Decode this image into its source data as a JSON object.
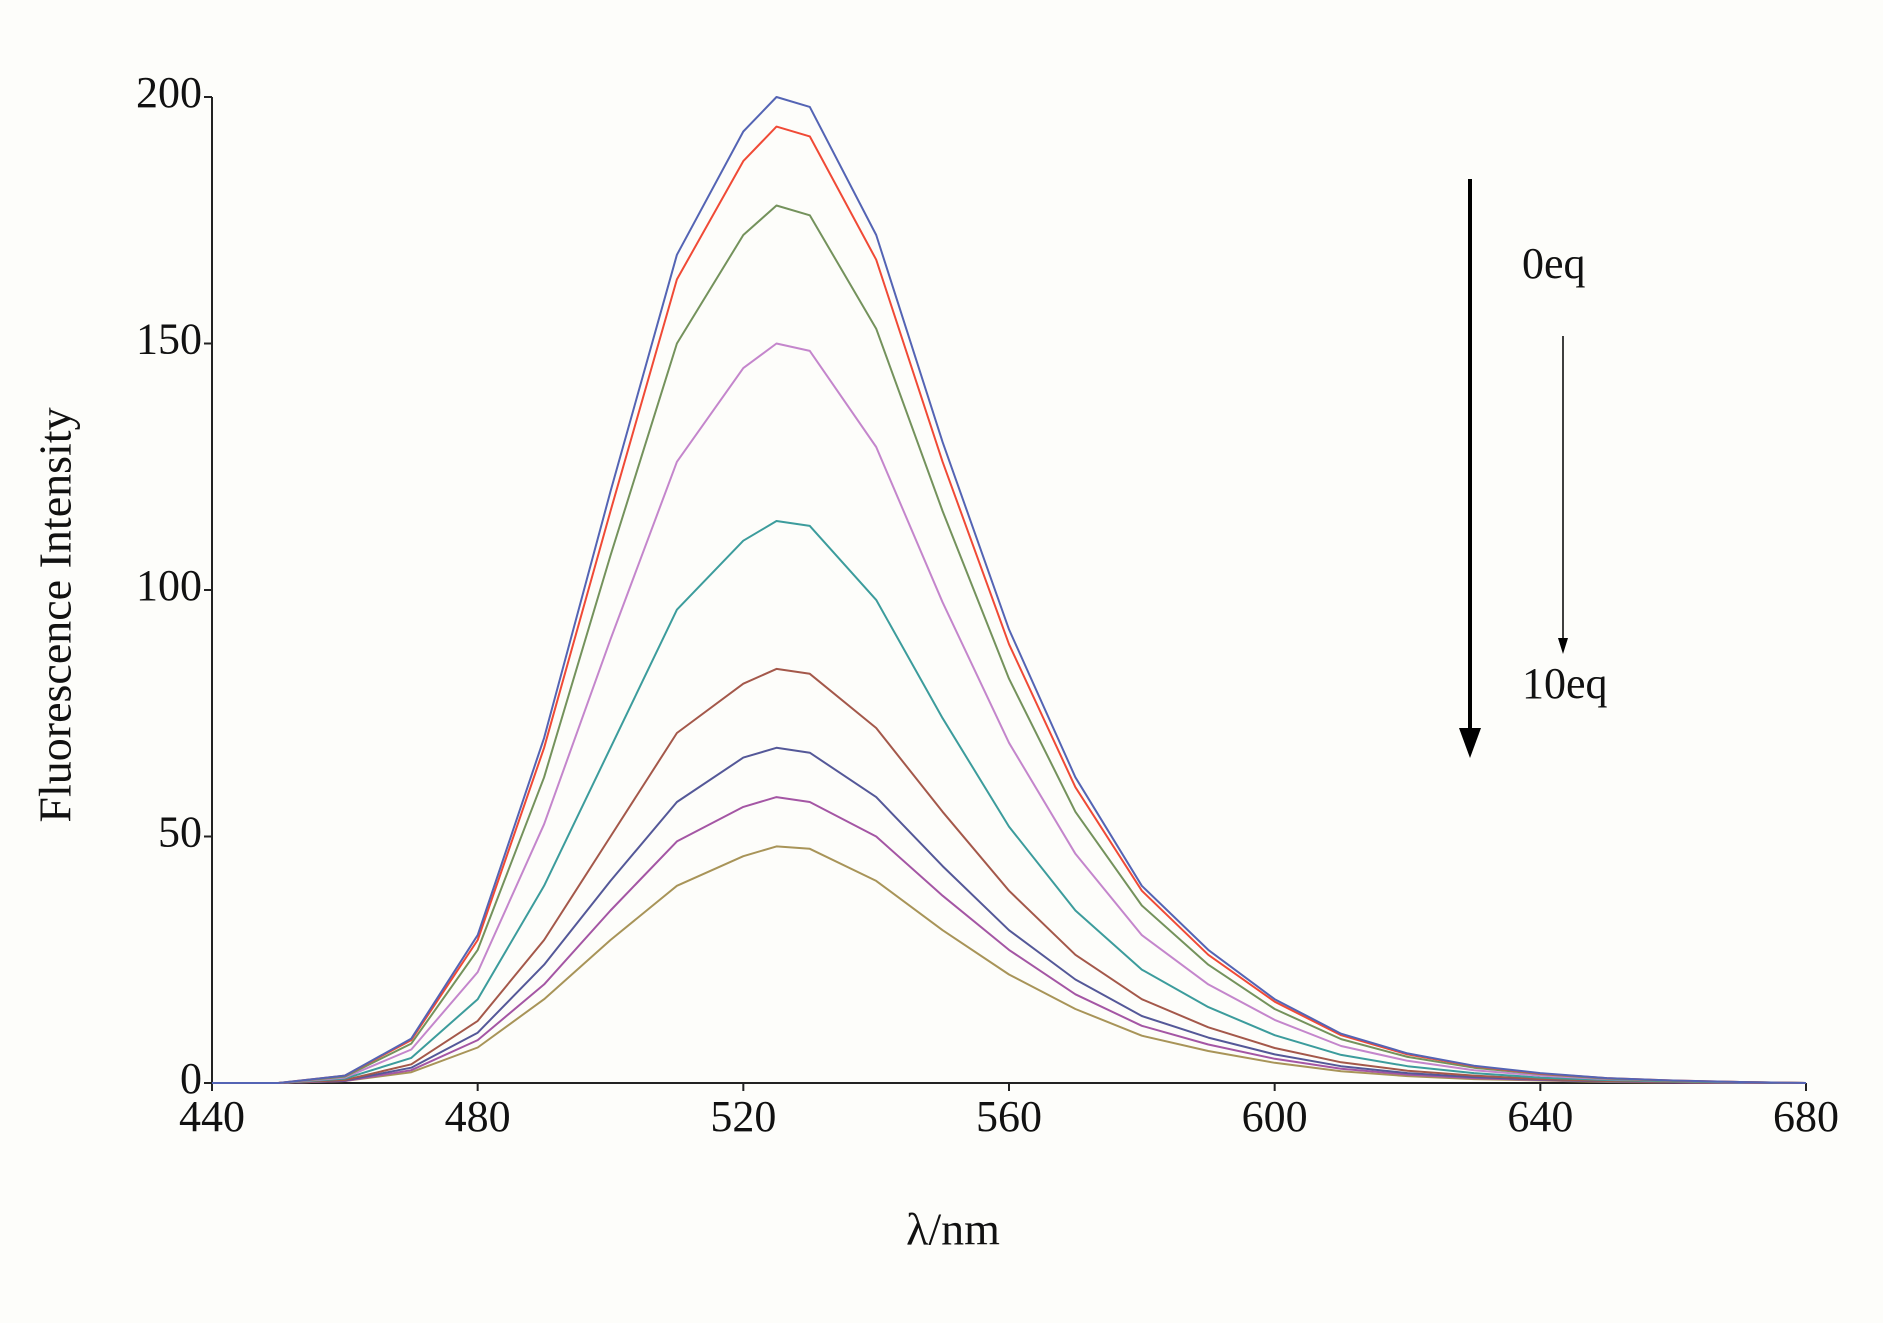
{
  "chart_data": {
    "type": "line",
    "xlabel": "λ/nm",
    "ylabel": "Fluorescence Intensity",
    "annotations": [
      "0eq",
      "10eq"
    ],
    "grid": false,
    "xlim": [
      440,
      680
    ],
    "ylim": [
      0,
      200
    ],
    "xticks": [
      440,
      480,
      520,
      560,
      600,
      640,
      680
    ],
    "yticks": [
      0,
      50,
      100,
      150,
      200
    ],
    "x": [
      440,
      450,
      460,
      470,
      480,
      490,
      500,
      510,
      520,
      525,
      530,
      540,
      550,
      560,
      570,
      580,
      590,
      600,
      610,
      620,
      630,
      640,
      650,
      660,
      670,
      680
    ],
    "series": [
      {
        "color": "#5464b4",
        "values": [
          0,
          0,
          1.5,
          9,
          30,
          70,
          120,
          168,
          193,
          200,
          198,
          172,
          130,
          92,
          62,
          40,
          27,
          17,
          10,
          6,
          3.5,
          2,
          1,
          0.5,
          0.2,
          0
        ]
      },
      {
        "color": "#f04a36",
        "values": [
          0,
          0,
          1.5,
          8.7,
          29,
          68,
          116,
          163,
          187,
          194,
          192,
          167,
          126,
          89,
          60,
          39,
          26,
          16.5,
          9.7,
          5.8,
          3.4,
          1.9,
          1,
          0.5,
          0.2,
          0
        ]
      },
      {
        "color": "#74925c",
        "values": [
          0,
          0,
          1.3,
          8,
          27,
          62,
          107,
          150,
          172,
          178,
          176,
          153,
          116,
          82,
          55,
          36,
          24,
          15,
          8.9,
          5.3,
          3.1,
          1.8,
          0.9,
          0.4,
          0.2,
          0
        ]
      },
      {
        "color": "#c486cc",
        "values": [
          0,
          0,
          1.1,
          6.8,
          22.5,
          52.5,
          90,
          126,
          145,
          150,
          148.5,
          129,
          97.5,
          69,
          46.5,
          30,
          20,
          12.8,
          7.5,
          4.5,
          2.6,
          1.5,
          0.8,
          0.4,
          0.2,
          0
        ]
      },
      {
        "color": "#3c9c9c",
        "values": [
          0,
          0,
          0.9,
          5.1,
          17,
          40,
          68,
          96,
          110,
          114,
          113,
          98,
          74,
          52,
          35,
          23,
          15.4,
          9.7,
          5.7,
          3.4,
          2,
          1.1,
          0.6,
          0.3,
          0.1,
          0
        ]
      },
      {
        "color": "#a4584a",
        "values": [
          0,
          0,
          0.6,
          3.8,
          12.6,
          29,
          50,
          71,
          81,
          84,
          83,
          72,
          55,
          39,
          26,
          17,
          11.3,
          7.1,
          4.2,
          2.5,
          1.5,
          0.8,
          0.4,
          0.2,
          0.1,
          0
        ]
      },
      {
        "color": "#545898",
        "values": [
          0,
          0,
          0.5,
          3.1,
          10.2,
          24,
          41,
          57,
          66,
          68,
          67,
          58,
          44,
          31,
          21,
          13.6,
          9.2,
          5.8,
          3.4,
          2,
          1.2,
          0.7,
          0.3,
          0.2,
          0.1,
          0
        ]
      },
      {
        "color": "#a456a4",
        "values": [
          0,
          0,
          0.4,
          2.6,
          8.7,
          20,
          35,
          49,
          56,
          58,
          57,
          50,
          38,
          27,
          18,
          11.6,
          7.8,
          4.9,
          2.9,
          1.7,
          1,
          0.6,
          0.3,
          0.1,
          0,
          0
        ]
      },
      {
        "color": "#a89458",
        "values": [
          0,
          0,
          0.4,
          2.2,
          7.2,
          17,
          29,
          40,
          46,
          48,
          47.5,
          41,
          31,
          22,
          15,
          9.6,
          6.5,
          4.1,
          2.4,
          1.4,
          0.8,
          0.5,
          0.2,
          0.1,
          0,
          0
        ]
      }
    ]
  }
}
